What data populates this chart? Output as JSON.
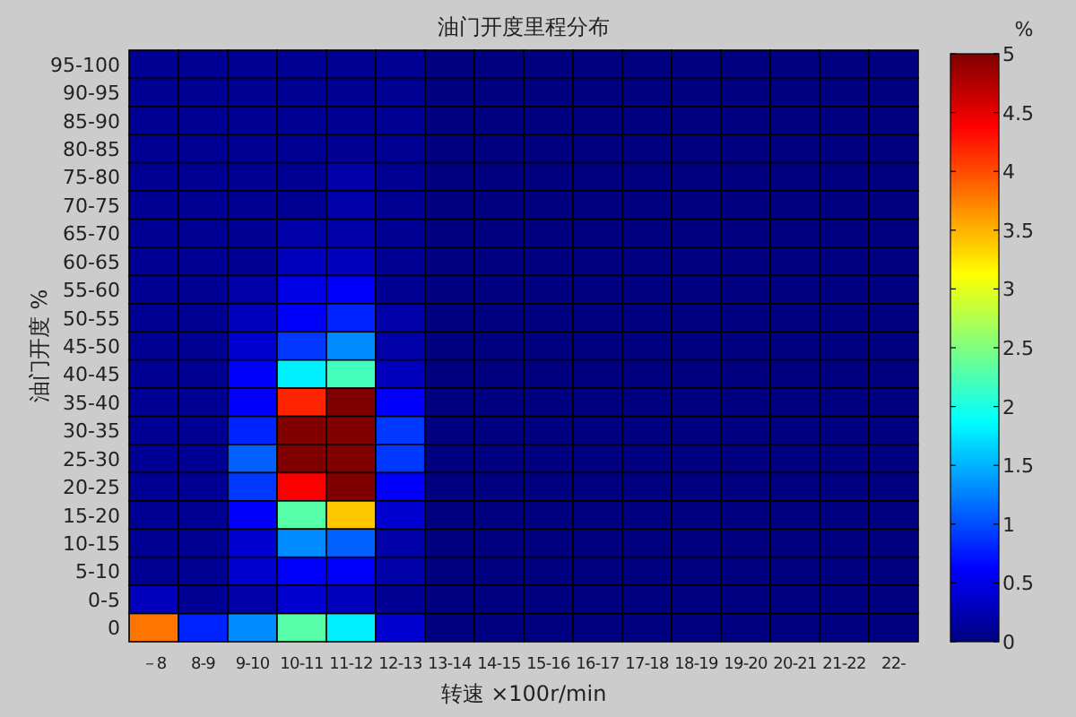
{
  "chart_data": {
    "type": "heatmap",
    "title": "油门开度里程分布",
    "xlabel": "转速 ×100r/min",
    "ylabel": "油门开度 %",
    "clabel": "%",
    "categories": [
      "－8",
      "8-9",
      "9-10",
      "10-11",
      "11-12",
      "12-13",
      "13-14",
      "14-15",
      "15-16",
      "16-17",
      "17-18",
      "18-19",
      "19-20",
      "20-21",
      "21-22",
      "22-"
    ],
    "y_categories": [
      "95-100",
      "90-95",
      "85-90",
      "80-85",
      "75-80",
      "70-75",
      "65-70",
      "60-65",
      "55-60",
      "50-55",
      "45-50",
      "40-45",
      "35-40",
      "30-35",
      "25-30",
      "20-25",
      "15-20",
      "10-15",
      "5-10",
      "0-5",
      "0"
    ],
    "cells": [
      [
        0.1,
        0.1,
        0.1,
        0.1,
        0.1,
        0.1,
        0,
        0,
        0,
        0,
        0,
        0,
        0,
        0,
        0,
        0
      ],
      [
        0.1,
        0.1,
        0.1,
        0.1,
        0.1,
        0.1,
        0,
        0,
        0,
        0,
        0,
        0,
        0,
        0,
        0,
        0
      ],
      [
        0.1,
        0.1,
        0.1,
        0.1,
        0.1,
        0.1,
        0,
        0,
        0,
        0,
        0,
        0,
        0,
        0,
        0,
        0
      ],
      [
        0.1,
        0.1,
        0.1,
        0.1,
        0.1,
        0.1,
        0,
        0,
        0,
        0,
        0,
        0,
        0,
        0,
        0,
        0
      ],
      [
        0.1,
        0.1,
        0.1,
        0.1,
        0.2,
        0.1,
        0,
        0,
        0,
        0,
        0,
        0,
        0,
        0,
        0,
        0
      ],
      [
        0.1,
        0.1,
        0.1,
        0.1,
        0.2,
        0.1,
        0,
        0,
        0,
        0,
        0,
        0,
        0,
        0,
        0,
        0
      ],
      [
        0.1,
        0.1,
        0.1,
        0.2,
        0.2,
        0.1,
        0,
        0,
        0,
        0,
        0,
        0,
        0,
        0,
        0,
        0
      ],
      [
        0.1,
        0.1,
        0.1,
        0.3,
        0.3,
        0.1,
        0,
        0,
        0,
        0,
        0,
        0,
        0,
        0,
        0,
        0
      ],
      [
        0.1,
        0.1,
        0.2,
        0.5,
        0.6,
        0.1,
        0,
        0,
        0,
        0,
        0,
        0,
        0,
        0,
        0,
        0
      ],
      [
        0.1,
        0.1,
        0.3,
        0.6,
        0.8,
        0.2,
        0,
        0,
        0,
        0,
        0,
        0,
        0,
        0,
        0,
        0
      ],
      [
        0.1,
        0.1,
        0.4,
        0.9,
        1.3,
        0.2,
        0,
        0,
        0,
        0,
        0,
        0,
        0,
        0,
        0,
        0
      ],
      [
        0.1,
        0.1,
        0.6,
        1.8,
        2.2,
        0.3,
        0,
        0,
        0,
        0,
        0,
        0,
        0,
        0,
        0,
        0
      ],
      [
        0.1,
        0.1,
        0.6,
        4.2,
        5,
        0.6,
        0,
        0,
        0,
        0,
        0,
        0,
        0,
        0,
        0,
        0
      ],
      [
        0.1,
        0.1,
        0.8,
        5,
        5,
        0.9,
        0,
        0,
        0,
        0,
        0,
        0,
        0,
        0,
        0,
        0
      ],
      [
        0.1,
        0.1,
        1.1,
        5,
        5,
        0.9,
        0,
        0,
        0,
        0,
        0,
        0,
        0,
        0,
        0,
        0
      ],
      [
        0.1,
        0.1,
        0.9,
        4.4,
        5,
        0.6,
        0,
        0,
        0,
        0,
        0,
        0,
        0,
        0,
        0,
        0
      ],
      [
        0.1,
        0.1,
        0.6,
        2.3,
        3.4,
        0.4,
        0,
        0,
        0,
        0,
        0,
        0,
        0,
        0,
        0,
        0
      ],
      [
        0.1,
        0.1,
        0.4,
        1.3,
        1.1,
        0.2,
        0,
        0,
        0,
        0,
        0,
        0,
        0,
        0,
        0,
        0
      ],
      [
        0.1,
        0.1,
        0.4,
        0.6,
        0.6,
        0.2,
        0,
        0,
        0,
        0,
        0,
        0,
        0,
        0,
        0,
        0
      ],
      [
        0.3,
        0.1,
        0.2,
        0.4,
        0.3,
        0.1,
        0,
        0,
        0,
        0,
        0,
        0,
        0,
        0,
        0,
        0
      ],
      [
        3.8,
        0.8,
        1.3,
        2.3,
        1.8,
        0.4,
        0,
        0,
        0,
        0,
        0,
        0,
        0,
        0,
        0,
        0
      ]
    ],
    "clim": [
      0,
      5
    ],
    "cticks": [
      0,
      0.5,
      1,
      1.5,
      2,
      2.5,
      3,
      3.5,
      4,
      4.5,
      5
    ]
  }
}
